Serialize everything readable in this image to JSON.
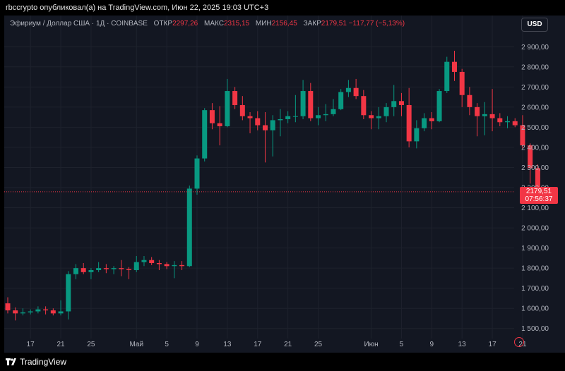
{
  "header": {
    "publisher_line": "rbccrypto опубликовал(а) на TradingView.com, Июн 22, 2025 19:03 UTC+3"
  },
  "legend": {
    "symbol": "Эфириум / Доллар США · 1Д · COINBASE",
    "open_label": "ОТКР",
    "open_value": "2297,26",
    "high_label": "МАКС",
    "high_value": "2315,15",
    "low_label": "МИН",
    "low_value": "2156,45",
    "close_label": "ЗАКР",
    "close_value": "2179,51",
    "change_value": "−117,77 (−5,13%)"
  },
  "currency_button": "USD",
  "price_tag": {
    "price": "2179,51",
    "countdown": "07:56:37"
  },
  "footer": {
    "brand": "TradingView"
  },
  "colors": {
    "up": "#089981",
    "down": "#f23645",
    "background": "#131722",
    "grid": "#1e222d",
    "axis_text": "#b2b5be"
  },
  "icons": [
    "tradingview-logo-icon",
    "replay-icon"
  ],
  "chart_data": {
    "type": "candlestick",
    "title": "Эфириум / Доллар США · 1Д · COINBASE",
    "xlabel": "",
    "ylabel": "",
    "ylim": [
      1450,
      2950
    ],
    "y_ticks": [
      1500,
      1600,
      1700,
      1800,
      1900,
      2000,
      2100,
      2200,
      2300,
      2400,
      2500,
      2600,
      2700,
      2800,
      2900
    ],
    "y_tick_labels": [
      "1 500,00",
      "1 600,00",
      "1 700,00",
      "1 800,00",
      "1 900,00",
      "2 000,00",
      "2 100,00",
      "2 200,00",
      "2 300,00",
      "2 400,00",
      "2 500,00",
      "2 600,00",
      "2 700,00",
      "2 800,00",
      "2 900,00"
    ],
    "x_tick_labels": [
      {
        "label": "17",
        "index": 3
      },
      {
        "label": "21",
        "index": 7
      },
      {
        "label": "25",
        "index": 11
      },
      {
        "label": "Май",
        "index": 17
      },
      {
        "label": "5",
        "index": 21
      },
      {
        "label": "9",
        "index": 25
      },
      {
        "label": "13",
        "index": 29
      },
      {
        "label": "17",
        "index": 33
      },
      {
        "label": "21",
        "index": 37
      },
      {
        "label": "25",
        "index": 41
      },
      {
        "label": "Июн",
        "index": 48
      },
      {
        "label": "5",
        "index": 52
      },
      {
        "label": "9",
        "index": 56
      },
      {
        "label": "13",
        "index": 60
      },
      {
        "label": "17",
        "index": 64
      },
      {
        "label": "21",
        "index": 68
      }
    ],
    "last_price": 2179.51,
    "candles": [
      {
        "o": 1625,
        "h": 1655,
        "l": 1575,
        "c": 1590
      },
      {
        "o": 1590,
        "h": 1605,
        "l": 1540,
        "c": 1575
      },
      {
        "o": 1575,
        "h": 1600,
        "l": 1565,
        "c": 1580
      },
      {
        "o": 1580,
        "h": 1595,
        "l": 1570,
        "c": 1585
      },
      {
        "o": 1585,
        "h": 1610,
        "l": 1575,
        "c": 1595
      },
      {
        "o": 1595,
        "h": 1610,
        "l": 1570,
        "c": 1590
      },
      {
        "o": 1590,
        "h": 1600,
        "l": 1565,
        "c": 1575
      },
      {
        "o": 1575,
        "h": 1640,
        "l": 1565,
        "c": 1585
      },
      {
        "o": 1585,
        "h": 1785,
        "l": 1545,
        "c": 1770
      },
      {
        "o": 1770,
        "h": 1820,
        "l": 1745,
        "c": 1800
      },
      {
        "o": 1800,
        "h": 1825,
        "l": 1770,
        "c": 1780
      },
      {
        "o": 1780,
        "h": 1800,
        "l": 1745,
        "c": 1790
      },
      {
        "o": 1790,
        "h": 1830,
        "l": 1780,
        "c": 1800
      },
      {
        "o": 1800,
        "h": 1820,
        "l": 1775,
        "c": 1795
      },
      {
        "o": 1795,
        "h": 1810,
        "l": 1770,
        "c": 1800
      },
      {
        "o": 1800,
        "h": 1840,
        "l": 1760,
        "c": 1795
      },
      {
        "o": 1795,
        "h": 1805,
        "l": 1745,
        "c": 1790
      },
      {
        "o": 1790,
        "h": 1860,
        "l": 1780,
        "c": 1830
      },
      {
        "o": 1830,
        "h": 1860,
        "l": 1810,
        "c": 1840
      },
      {
        "o": 1840,
        "h": 1855,
        "l": 1815,
        "c": 1825
      },
      {
        "o": 1825,
        "h": 1840,
        "l": 1790,
        "c": 1820
      },
      {
        "o": 1820,
        "h": 1830,
        "l": 1795,
        "c": 1810
      },
      {
        "o": 1810,
        "h": 1835,
        "l": 1750,
        "c": 1815
      },
      {
        "o": 1815,
        "h": 1835,
        "l": 1790,
        "c": 1810
      },
      {
        "o": 1810,
        "h": 2210,
        "l": 1805,
        "c": 2195
      },
      {
        "o": 2195,
        "h": 2360,
        "l": 2165,
        "c": 2345
      },
      {
        "o": 2345,
        "h": 2595,
        "l": 2330,
        "c": 2585
      },
      {
        "o": 2585,
        "h": 2620,
        "l": 2490,
        "c": 2520
      },
      {
        "o": 2520,
        "h": 2605,
        "l": 2410,
        "c": 2505
      },
      {
        "o": 2505,
        "h": 2740,
        "l": 2500,
        "c": 2680
      },
      {
        "o": 2680,
        "h": 2700,
        "l": 2590,
        "c": 2610
      },
      {
        "o": 2610,
        "h": 2655,
        "l": 2535,
        "c": 2555
      },
      {
        "o": 2555,
        "h": 2575,
        "l": 2470,
        "c": 2545
      },
      {
        "o": 2545,
        "h": 2580,
        "l": 2485,
        "c": 2510
      },
      {
        "o": 2510,
        "h": 2575,
        "l": 2325,
        "c": 2485
      },
      {
        "o": 2485,
        "h": 2560,
        "l": 2355,
        "c": 2535
      },
      {
        "o": 2535,
        "h": 2590,
        "l": 2455,
        "c": 2540
      },
      {
        "o": 2540,
        "h": 2580,
        "l": 2520,
        "c": 2555
      },
      {
        "o": 2555,
        "h": 2660,
        "l": 2525,
        "c": 2555
      },
      {
        "o": 2555,
        "h": 2735,
        "l": 2540,
        "c": 2680
      },
      {
        "o": 2680,
        "h": 2720,
        "l": 2530,
        "c": 2545
      },
      {
        "o": 2545,
        "h": 2600,
        "l": 2510,
        "c": 2560
      },
      {
        "o": 2560,
        "h": 2615,
        "l": 2530,
        "c": 2565
      },
      {
        "o": 2565,
        "h": 2640,
        "l": 2555,
        "c": 2590
      },
      {
        "o": 2590,
        "h": 2690,
        "l": 2585,
        "c": 2675
      },
      {
        "o": 2675,
        "h": 2735,
        "l": 2650,
        "c": 2695
      },
      {
        "o": 2695,
        "h": 2740,
        "l": 2640,
        "c": 2655
      },
      {
        "o": 2655,
        "h": 2685,
        "l": 2540,
        "c": 2560
      },
      {
        "o": 2560,
        "h": 2580,
        "l": 2490,
        "c": 2545
      },
      {
        "o": 2545,
        "h": 2600,
        "l": 2490,
        "c": 2555
      },
      {
        "o": 2555,
        "h": 2620,
        "l": 2525,
        "c": 2600
      },
      {
        "o": 2600,
        "h": 2710,
        "l": 2555,
        "c": 2630
      },
      {
        "o": 2630,
        "h": 2670,
        "l": 2555,
        "c": 2610
      },
      {
        "o": 2610,
        "h": 2695,
        "l": 2400,
        "c": 2430
      },
      {
        "o": 2430,
        "h": 2535,
        "l": 2395,
        "c": 2495
      },
      {
        "o": 2495,
        "h": 2570,
        "l": 2480,
        "c": 2545
      },
      {
        "o": 2545,
        "h": 2575,
        "l": 2490,
        "c": 2530
      },
      {
        "o": 2530,
        "h": 2690,
        "l": 2525,
        "c": 2680
      },
      {
        "o": 2680,
        "h": 2850,
        "l": 2670,
        "c": 2825
      },
      {
        "o": 2825,
        "h": 2880,
        "l": 2730,
        "c": 2775
      },
      {
        "o": 2775,
        "h": 2790,
        "l": 2600,
        "c": 2660
      },
      {
        "o": 2660,
        "h": 2700,
        "l": 2560,
        "c": 2600
      },
      {
        "o": 2600,
        "h": 2620,
        "l": 2455,
        "c": 2555
      },
      {
        "o": 2555,
        "h": 2625,
        "l": 2460,
        "c": 2565
      },
      {
        "o": 2565,
        "h": 2690,
        "l": 2480,
        "c": 2545
      },
      {
        "o": 2545,
        "h": 2570,
        "l": 2505,
        "c": 2525
      },
      {
        "o": 2525,
        "h": 2555,
        "l": 2495,
        "c": 2530
      },
      {
        "o": 2530,
        "h": 2545,
        "l": 2500,
        "c": 2510
      },
      {
        "o": 2510,
        "h": 2560,
        "l": 2395,
        "c": 2410
      },
      {
        "o": 2410,
        "h": 2420,
        "l": 2220,
        "c": 2297
      },
      {
        "o": 2297,
        "h": 2315,
        "l": 2156,
        "c": 2180
      }
    ]
  }
}
